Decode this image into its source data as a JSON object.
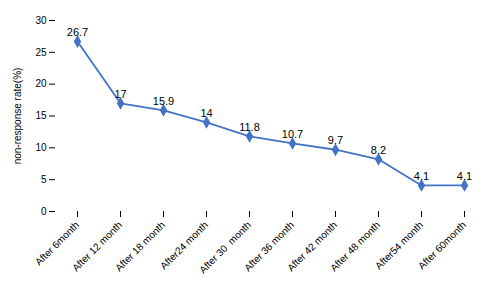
{
  "chart_data": {
    "type": "line",
    "categories": [
      "After 6month",
      "After 12 month",
      "After 18 month",
      "After24 month",
      "After 30  month",
      "After 36 month",
      "After 42 month",
      "After 48 month",
      "After54 month",
      "After 60month"
    ],
    "values": [
      26.7,
      17,
      15.9,
      14,
      11.8,
      10.7,
      9.7,
      8.2,
      4.1,
      4.1
    ],
    "color": "#4472C4",
    "marker": "diamond",
    "ylabel": "non-response rate(%)",
    "ylim": [
      0,
      30
    ],
    "yticks": [
      0,
      5,
      10,
      15,
      20,
      25,
      30
    ],
    "data_labels": true,
    "grid": false
  }
}
